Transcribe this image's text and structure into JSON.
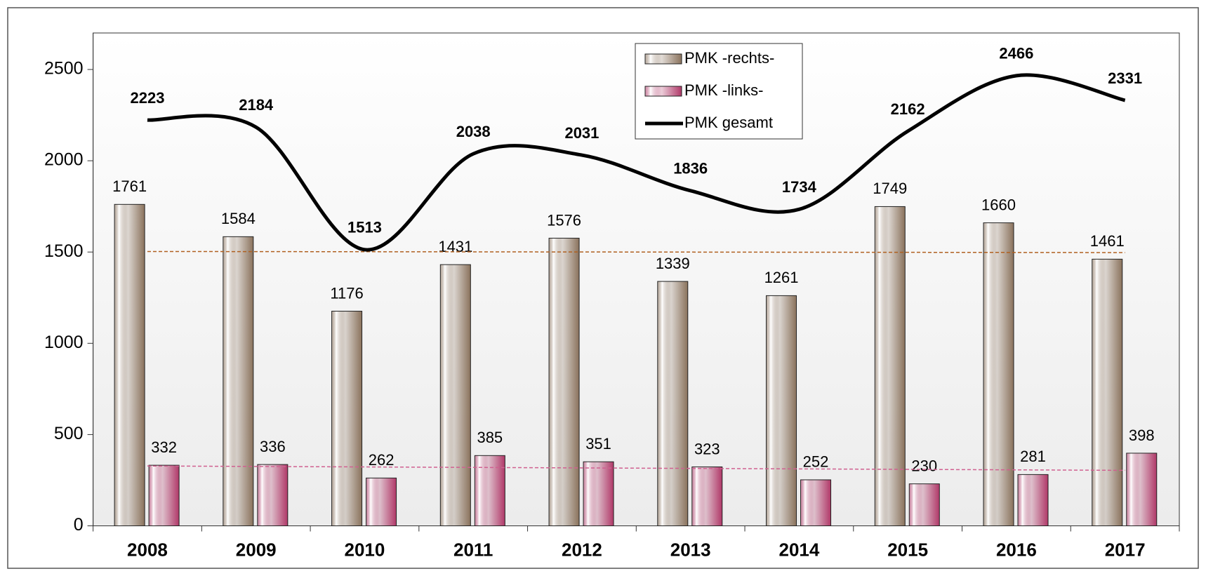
{
  "chart_data": {
    "type": "bar",
    "categories": [
      "2008",
      "2009",
      "2010",
      "2011",
      "2012",
      "2013",
      "2014",
      "2015",
      "2016",
      "2017"
    ],
    "series": [
      {
        "name": "PMK -rechts-",
        "type": "bar",
        "color": "#8a725c",
        "values": [
          1761,
          1584,
          1176,
          1431,
          1576,
          1339,
          1261,
          1749,
          1660,
          1461
        ],
        "trend": [
          1503,
          1497
        ],
        "trend_color": "#b06020"
      },
      {
        "name": "PMK -links-",
        "type": "bar",
        "color": "#b03868",
        "values": [
          332,
          336,
          262,
          385,
          351,
          323,
          252,
          230,
          281,
          398
        ],
        "trend": [
          328,
          304
        ],
        "trend_color": "#d06090"
      },
      {
        "name": "PMK gesamt",
        "type": "line",
        "color": "#000000",
        "values": [
          2223,
          2184,
          1513,
          2038,
          2031,
          1836,
          1734,
          2162,
          2466,
          2331
        ]
      }
    ],
    "ylim": [
      0,
      2700
    ],
    "yticks": [
      0,
      500,
      1000,
      1500,
      2000,
      2500
    ],
    "grid": false,
    "legend": "top-right"
  }
}
